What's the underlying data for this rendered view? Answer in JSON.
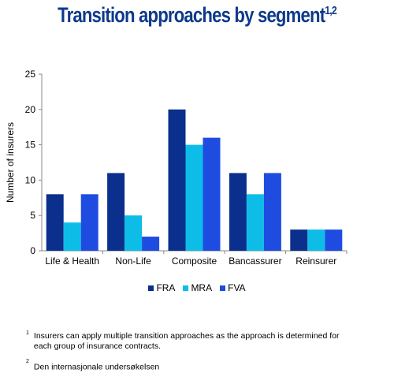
{
  "title": {
    "text": "Transition approaches by segment",
    "sup": "1,2"
  },
  "colors": {
    "FRA": "#0a2f8c",
    "MRA": "#0dbde8",
    "FVA": "#1f4ce0",
    "title": "#0e3a8c"
  },
  "chart_data": {
    "type": "bar",
    "categories": [
      "Life & Health",
      "Non-Life",
      "Composite",
      "Bancassurer",
      "Reinsurer"
    ],
    "series": [
      {
        "name": "FRA",
        "values": [
          8,
          11,
          20,
          11,
          3
        ]
      },
      {
        "name": "MRA",
        "values": [
          4,
          5,
          15,
          8,
          3
        ]
      },
      {
        "name": "FVA",
        "values": [
          8,
          2,
          16,
          11,
          3
        ]
      }
    ],
    "title": "Transition approaches by segment",
    "xlabel": "",
    "ylabel": "Number of insurers",
    "ylim": [
      0,
      25
    ],
    "yticks": [
      "0",
      "5",
      "10",
      "15",
      "20",
      "25"
    ],
    "grid": false,
    "legend": "bottom-center"
  },
  "footnotes": [
    {
      "mark": "1",
      "text": "Insurers can apply multiple transition approaches as the approach is determined for each group of insurance contracts."
    },
    {
      "mark": "2",
      "text": "Den internasjonale undersøkelsen"
    }
  ]
}
